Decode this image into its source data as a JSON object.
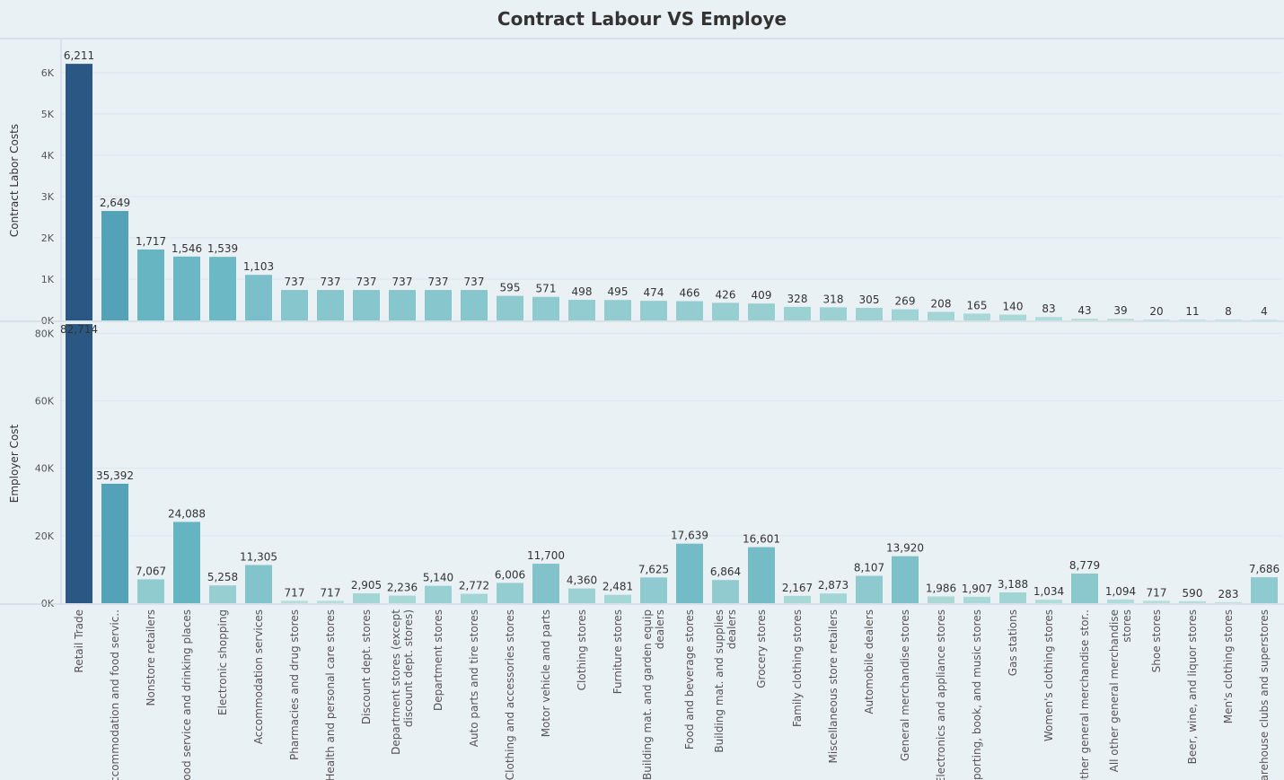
{
  "title": "Contract Labour VS Employe",
  "chart_data": {
    "type": "bar",
    "categories": [
      "Retail Trade",
      "Accommodation and food servic..",
      "Nonstore retailers",
      "Food service and drinking places",
      "Electronic shopping",
      "Accommodation services",
      "Pharmacies and drug stores",
      "Health and personal care stores",
      "Discount dept. stores",
      "Department stores (except discount dept. stores)",
      "Department stores",
      "Auto parts and tire stores",
      "Clothing and accessories stores",
      "Motor vehicle and parts",
      "Clothing stores",
      "Furniture stores",
      "Building mat. and garden equip dealers",
      "Food and beverage stores",
      "Building mat. and supplies dealers",
      "Grocery stores",
      "Family clothing stores",
      "Miscellaneous store retailers",
      "Automobile dealers",
      "General merchandise stores",
      "Electronics and appliance stores",
      "Sporting, book, and music stores",
      "Gas stations",
      "Women's clothing stores",
      "Other general merchandise stor..",
      "All other general merchandise stores",
      "Shoe stores",
      "Beer, wine, and liquor stores",
      "Men's clothing stores",
      "Warehouse clubs and superstores"
    ],
    "category_lines": [
      [
        "Retail Trade"
      ],
      [
        "Accommodation and food servic.."
      ],
      [
        "Nonstore retailers"
      ],
      [
        "Food service and drinking places"
      ],
      [
        "Electronic shopping"
      ],
      [
        "Accommodation services"
      ],
      [
        "Pharmacies and drug stores"
      ],
      [
        "Health and personal care stores"
      ],
      [
        "Discount dept. stores"
      ],
      [
        "Department stores (except",
        "discount dept. stores)"
      ],
      [
        "Department stores"
      ],
      [
        "Auto parts and tire stores"
      ],
      [
        "Clothing and accessories stores"
      ],
      [
        "Motor vehicle and parts"
      ],
      [
        "Clothing stores"
      ],
      [
        "Furniture stores"
      ],
      [
        "Building mat. and garden equip",
        "dealers"
      ],
      [
        "Food and beverage stores"
      ],
      [
        "Building mat. and supplies",
        "dealers"
      ],
      [
        "Grocery stores"
      ],
      [
        "Family clothing stores"
      ],
      [
        "Miscellaneous store retailers"
      ],
      [
        "Automobile dealers"
      ],
      [
        "General merchandise stores"
      ],
      [
        "Electronics and appliance stores"
      ],
      [
        "Sporting, book, and  music stores"
      ],
      [
        "Gas stations"
      ],
      [
        "Women's clothing stores"
      ],
      [
        "Other general merchandise stor.."
      ],
      [
        "All other general merchandise",
        "stores"
      ],
      [
        "Shoe stores"
      ],
      [
        "Beer, wine, and liquor stores"
      ],
      [
        "Men's clothing stores"
      ],
      [
        "Warehouse clubs and superstores"
      ]
    ],
    "series": [
      {
        "ylabel": "Contract Labor Costs",
        "ylim": [
          0,
          6800
        ],
        "ticks": [
          0,
          1000,
          2000,
          3000,
          4000,
          5000,
          6000
        ],
        "tick_labels": [
          "0K",
          "1K",
          "2K",
          "3K",
          "4K",
          "5K",
          "6K"
        ],
        "values": [
          6211,
          2649,
          1717,
          1546,
          1539,
          1103,
          737,
          737,
          737,
          737,
          737,
          737,
          595,
          571,
          498,
          495,
          474,
          466,
          426,
          409,
          328,
          318,
          305,
          269,
          208,
          165,
          140,
          83,
          43,
          39,
          20,
          11,
          8,
          4
        ],
        "labels": [
          "6,211",
          "2,649",
          "1,717",
          "1,546",
          "1,539",
          "1,103",
          "737",
          "737",
          "737",
          "737",
          "737",
          "737",
          "595",
          "571",
          "498",
          "495",
          "474",
          "466",
          "426",
          "409",
          "328",
          "318",
          "305",
          "269",
          "208",
          "165",
          "140",
          "83",
          "43",
          "39",
          "20",
          "11",
          "8",
          "4"
        ]
      },
      {
        "ylabel": "Employer Cost",
        "ylim": [
          0,
          83000
        ],
        "ticks": [
          0,
          20000,
          40000,
          60000,
          80000
        ],
        "tick_labels": [
          "0K",
          "20K",
          "40K",
          "60K",
          "80K"
        ],
        "values": [
          82714,
          35392,
          7067,
          24088,
          5258,
          11305,
          717,
          717,
          2905,
          2236,
          5140,
          2772,
          6006,
          11700,
          4360,
          2481,
          7625,
          17639,
          6864,
          16601,
          2167,
          2873,
          8107,
          13920,
          1986,
          1907,
          3188,
          1034,
          8779,
          1094,
          717,
          590,
          283,
          7686
        ],
        "labels": [
          "82,714",
          "35,392",
          "7,067",
          "24,088",
          "5,258",
          "11,305",
          "717",
          "717",
          "2,905",
          "2,236",
          "5,140",
          "2,772",
          "6,006",
          "11,700",
          "4,360",
          "2,481",
          "7,625",
          "17,639",
          "6,864",
          "16,601",
          "2,167",
          "2,873",
          "8,107",
          "13,920",
          "1,986",
          "1,907",
          "3,188",
          "1,034",
          "8,779",
          "1,094",
          "717",
          "590",
          "283",
          "7,686"
        ]
      }
    ],
    "colors": {
      "light": "#c4e6e0",
      "mid": "#5aaebf",
      "dark": "#2b5785"
    },
    "grid": true
  }
}
